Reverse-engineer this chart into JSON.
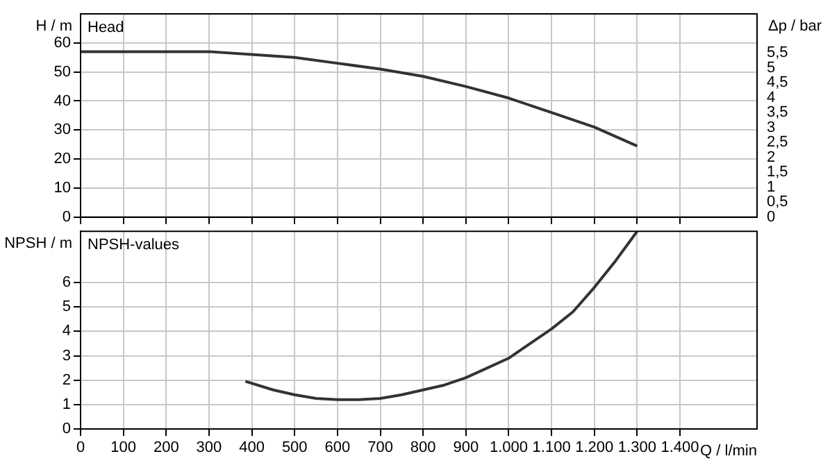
{
  "chart_data": [
    {
      "type": "line",
      "ylabel": "H / m",
      "y2label": "Δp / bar",
      "annotations": [
        "Head"
      ],
      "color": "#333333",
      "x": [
        0,
        100,
        200,
        300,
        400,
        500,
        600,
        700,
        800,
        900,
        1000,
        1100,
        1200,
        1300
      ],
      "values": [
        57,
        57,
        57,
        57,
        56,
        55,
        53,
        51,
        48.5,
        45,
        41,
        36,
        31,
        24.5
      ],
      "xlim": [
        0,
        1580
      ],
      "xticks": [
        0,
        100,
        200,
        300,
        400,
        500,
        600,
        700,
        800,
        900,
        1000,
        1100,
        1200,
        1300,
        1400
      ],
      "ylim": [
        0,
        70
      ],
      "yticks": [
        0,
        10,
        20,
        30,
        40,
        50,
        60
      ],
      "y2lim": [
        0,
        6.8
      ],
      "y2ticks": [
        0,
        {
          "value": 0.5,
          "label": "0,5"
        },
        1,
        {
          "value": 1.5,
          "label": "1,5"
        },
        2,
        {
          "value": 2.5,
          "label": "2,5"
        },
        3,
        {
          "value": 3.5,
          "label": "3,5"
        },
        4,
        {
          "value": 4.5,
          "label": "4,5"
        },
        5,
        {
          "value": 5.5,
          "label": "5,5"
        }
      ],
      "grid": true,
      "tick_labels": "y"
    },
    {
      "type": "line",
      "ylabel": "NPSH / m",
      "xlabel": "Q / l/min",
      "annotations": [
        "NPSH-values"
      ],
      "color": "#333333",
      "x": [
        385,
        450,
        500,
        550,
        600,
        650,
        700,
        750,
        800,
        850,
        900,
        950,
        1000,
        1050,
        1100,
        1150,
        1200,
        1250,
        1300
      ],
      "values": [
        1.95,
        1.6,
        1.4,
        1.25,
        1.2,
        1.2,
        1.25,
        1.4,
        1.6,
        1.8,
        2.1,
        2.5,
        2.9,
        3.5,
        4.1,
        4.8,
        5.8,
        6.9,
        8.1
      ],
      "xlim": [
        0,
        1580
      ],
      "xticks": [
        0,
        100,
        200,
        300,
        400,
        500,
        600,
        700,
        800,
        900,
        {
          "value": 1000,
          "label": "1.000"
        },
        {
          "value": 1100,
          "label": "1.100"
        },
        {
          "value": 1200,
          "label": "1.200"
        },
        {
          "value": 1300,
          "label": "1.300"
        },
        {
          "value": 1400,
          "label": "1.400"
        }
      ],
      "ylim": [
        0,
        8.1
      ],
      "yticks": [
        0,
        1,
        2,
        3,
        4,
        5,
        6
      ],
      "grid": true
    }
  ]
}
